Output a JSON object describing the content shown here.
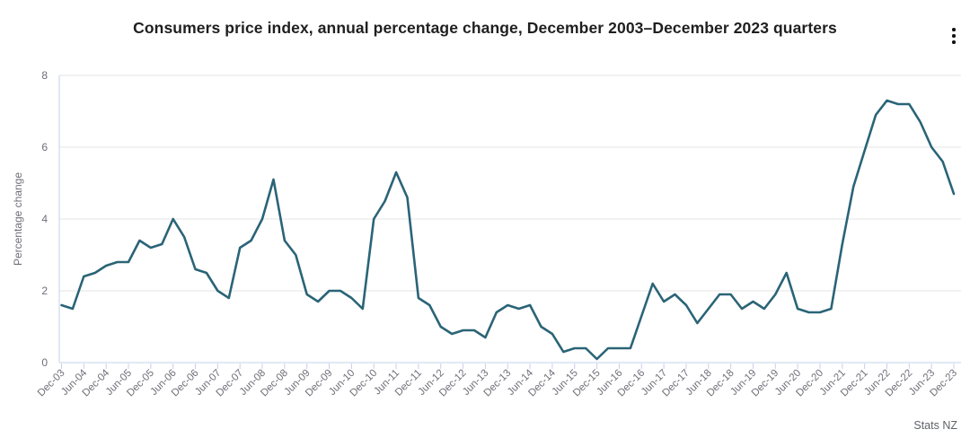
{
  "header": {
    "title": "Consumers price index, annual percentage change, December 2003–December 2023 quarters"
  },
  "footer": {
    "attribution": "Stats NZ"
  },
  "colors": {
    "line": "#2a6477",
    "grid": "#e6e6e6",
    "axis": "#c6d0e8",
    "tick_label": "#6e6e78",
    "axis_title": "#6e6e78",
    "title": "#1f1f1f",
    "attribution": "#5f6368",
    "background": "#ffffff"
  },
  "chart_data": {
    "type": "line",
    "title": "Consumers price index, annual percentage change, December 2003–December 2023 quarters",
    "xlabel": "",
    "ylabel": "Percentage change",
    "ylim": [
      0,
      8
    ],
    "yticks": [
      0,
      2,
      4,
      6,
      8
    ],
    "grid": true,
    "legend": false,
    "x_labels_shown_every": 2,
    "x": [
      "Dec-03",
      "Mar-04",
      "Jun-04",
      "Sep-04",
      "Dec-04",
      "Mar-05",
      "Jun-05",
      "Sep-05",
      "Dec-05",
      "Mar-06",
      "Jun-06",
      "Sep-06",
      "Dec-06",
      "Mar-07",
      "Jun-07",
      "Sep-07",
      "Dec-07",
      "Mar-08",
      "Jun-08",
      "Sep-08",
      "Dec-08",
      "Mar-09",
      "Jun-09",
      "Sep-09",
      "Dec-09",
      "Mar-10",
      "Jun-10",
      "Sep-10",
      "Dec-10",
      "Mar-11",
      "Jun-11",
      "Sep-11",
      "Dec-11",
      "Mar-12",
      "Jun-12",
      "Sep-12",
      "Dec-12",
      "Mar-13",
      "Jun-13",
      "Sep-13",
      "Dec-13",
      "Mar-14",
      "Jun-14",
      "Sep-14",
      "Dec-14",
      "Mar-15",
      "Jun-15",
      "Sep-15",
      "Dec-15",
      "Mar-16",
      "Jun-16",
      "Sep-16",
      "Dec-16",
      "Mar-17",
      "Jun-17",
      "Sep-17",
      "Dec-17",
      "Mar-18",
      "Jun-18",
      "Sep-18",
      "Dec-18",
      "Mar-19",
      "Jun-19",
      "Sep-19",
      "Dec-19",
      "Mar-20",
      "Jun-20",
      "Sep-20",
      "Dec-20",
      "Mar-21",
      "Jun-21",
      "Sep-21",
      "Dec-21",
      "Mar-22",
      "Jun-22",
      "Sep-22",
      "Dec-22",
      "Mar-23",
      "Jun-23",
      "Sep-23",
      "Dec-23"
    ],
    "series": [
      {
        "name": "CPI annual percentage change",
        "values": [
          1.6,
          1.5,
          2.4,
          2.5,
          2.7,
          2.8,
          2.8,
          3.4,
          3.2,
          3.3,
          4.0,
          3.5,
          2.6,
          2.5,
          2.0,
          1.8,
          3.2,
          3.4,
          4.0,
          5.1,
          3.4,
          3.0,
          1.9,
          1.7,
          2.0,
          2.0,
          1.8,
          1.5,
          4.0,
          4.5,
          5.3,
          4.6,
          1.8,
          1.6,
          1.0,
          0.8,
          0.9,
          0.9,
          0.7,
          1.4,
          1.6,
          1.5,
          1.6,
          1.0,
          0.8,
          0.3,
          0.4,
          0.4,
          0.1,
          0.4,
          0.4,
          0.4,
          1.3,
          2.2,
          1.7,
          1.9,
          1.6,
          1.1,
          1.5,
          1.9,
          1.9,
          1.5,
          1.7,
          1.5,
          1.9,
          2.5,
          1.5,
          1.4,
          1.4,
          1.5,
          3.3,
          4.9,
          5.9,
          6.9,
          7.3,
          7.2,
          7.2,
          6.7,
          6.0,
          5.6,
          4.7
        ]
      }
    ]
  }
}
